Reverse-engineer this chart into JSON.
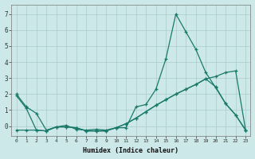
{
  "xlabel": "Humidex (Indice chaleur)",
  "background_color": "#cce8e8",
  "grid_color": "#aacccc",
  "line_color": "#1a7a6a",
  "xlim": [
    -0.5,
    23.5
  ],
  "ylim": [
    -0.6,
    7.6
  ],
  "yticks": [
    0,
    1,
    2,
    3,
    4,
    5,
    6,
    7
  ],
  "xticks": [
    0,
    1,
    2,
    3,
    4,
    5,
    6,
    7,
    8,
    9,
    10,
    11,
    12,
    13,
    14,
    15,
    16,
    17,
    18,
    19,
    20,
    21,
    22,
    23
  ],
  "series1_x": [
    0,
    1,
    2,
    3,
    4,
    5,
    6,
    7,
    8,
    9,
    10,
    11,
    12,
    13,
    14,
    15,
    16,
    17,
    18,
    19,
    20,
    21,
    22,
    23
  ],
  "series1_y": [
    2.0,
    1.2,
    0.8,
    -0.25,
    -0.05,
    0.05,
    -0.2,
    -0.25,
    -0.2,
    -0.25,
    -0.1,
    -0.1,
    1.2,
    1.35,
    2.3,
    4.2,
    7.0,
    5.9,
    4.8,
    3.35,
    2.4,
    1.4,
    0.7,
    -0.25
  ],
  "series2_x": [
    0,
    1,
    2,
    3,
    4,
    5,
    6,
    7,
    8,
    9,
    10,
    11,
    12,
    13,
    14,
    15,
    16,
    17,
    18,
    19,
    20,
    21,
    22,
    23
  ],
  "series2_y": [
    1.9,
    1.1,
    -0.25,
    -0.3,
    -0.05,
    -0.05,
    -0.1,
    -0.3,
    -0.3,
    -0.3,
    -0.1,
    0.15,
    0.5,
    0.9,
    1.3,
    1.65,
    2.0,
    2.3,
    2.6,
    2.95,
    3.1,
    3.35,
    3.45,
    -0.25
  ],
  "series3_x": [
    0,
    1,
    2,
    3,
    4,
    5,
    6,
    7,
    8,
    9,
    10,
    11,
    12,
    13,
    14,
    15,
    16,
    17,
    18,
    19,
    20,
    21,
    22,
    23
  ],
  "series3_y": [
    -0.25,
    -0.25,
    -0.25,
    -0.3,
    -0.05,
    -0.05,
    -0.1,
    -0.3,
    -0.3,
    -0.3,
    -0.1,
    0.15,
    0.5,
    0.9,
    1.3,
    1.65,
    2.0,
    2.3,
    2.6,
    2.95,
    2.45,
    1.4,
    0.7,
    -0.25
  ]
}
